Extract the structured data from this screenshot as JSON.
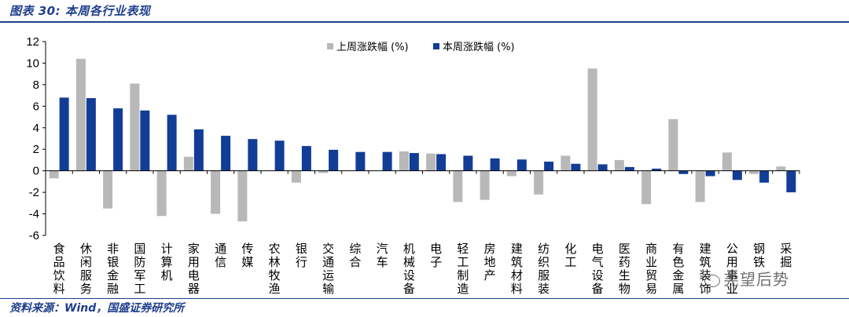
{
  "figure": {
    "title": "图表 30:  本周各行业表现",
    "source": "资料来源：Wind，国盛证券研究所",
    "watermark": "尧望后势"
  },
  "colors": {
    "prev": "#b8b8b8",
    "curr": "#123d96",
    "axis": "#000000",
    "accent": "#1f3e8c"
  },
  "chart_data": {
    "type": "bar",
    "title": "本周各行业表现",
    "xlabel": "",
    "ylabel": "",
    "ylim": [
      -6,
      12
    ],
    "yticks": [
      -6,
      -4,
      -2,
      0,
      2,
      4,
      6,
      8,
      10,
      12
    ],
    "grid": false,
    "legend_position": "top-center",
    "categories": [
      "食品饮料",
      "休闲服务",
      "非银金融",
      "国防军工",
      "计算机",
      "家用电器",
      "通信",
      "传媒",
      "农林牧渔",
      "银行",
      "交通运输",
      "综合",
      "汽车",
      "机械设备",
      "电子",
      "轻工制造",
      "房地产",
      "建筑材料",
      "纺织服装",
      "化工",
      "电气设备",
      "医药生物",
      "商业贸易",
      "有色金属",
      "建筑装饰",
      "公用事业",
      "钢铁",
      "采掘"
    ],
    "series": [
      {
        "name": "上周涨跌幅 (%)",
        "values": [
          -0.7,
          10.4,
          -3.5,
          8.1,
          -4.2,
          1.3,
          -4.0,
          -4.7,
          0.0,
          -1.1,
          -0.2,
          0.0,
          0.0,
          1.8,
          1.6,
          -2.9,
          -2.7,
          -0.5,
          -2.2,
          1.4,
          9.5,
          1.0,
          -3.1,
          4.8,
          -2.9,
          1.7,
          -0.3,
          0.4
        ]
      },
      {
        "name": "本周涨跌幅 (%)",
        "values": [
          6.8,
          6.75,
          5.8,
          5.6,
          5.2,
          3.85,
          3.25,
          2.95,
          2.8,
          2.3,
          1.95,
          1.75,
          1.75,
          1.65,
          1.55,
          1.4,
          1.15,
          1.05,
          0.85,
          0.65,
          0.6,
          0.35,
          0.2,
          -0.3,
          -0.5,
          -0.85,
          -1.1,
          -2.0
        ]
      }
    ]
  }
}
